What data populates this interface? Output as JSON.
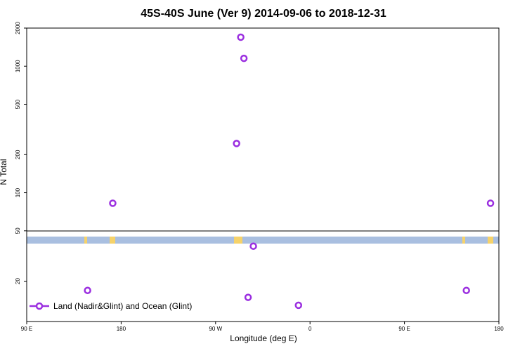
{
  "chart_data": {
    "type": "scatter",
    "title": "45S-40S June (Ver 9)   2014-09-06 to 2018-12-31",
    "xlabel": "Longitude (deg E)",
    "ylabel": "N Total",
    "xlim": [
      90,
      540
    ],
    "ylim": [
      9.6,
      2000
    ],
    "ylog": true,
    "xticks": [
      {
        "value": 90,
        "label": "90 E"
      },
      {
        "value": 180,
        "label": "180"
      },
      {
        "value": 270,
        "label": "90 W"
      },
      {
        "value": 360,
        "label": "0"
      },
      {
        "value": 450,
        "label": "90 E"
      },
      {
        "value": 540,
        "label": "180"
      }
    ],
    "yticks": [
      20,
      50,
      100,
      200,
      500,
      1000,
      2000
    ],
    "legend": "lower left",
    "series": [
      {
        "name": "Land (Nadir&Glint) and Ocean (Glint)",
        "color": "#9b2fe0",
        "x": [
          148,
          172,
          290,
          294,
          297,
          306,
          301,
          349,
          509,
          532
        ],
        "values": [
          16.9,
          82.6,
          245,
          1694,
          1153,
          37.8,
          14.9,
          12.9,
          16.9,
          82.6
        ]
      }
    ]
  }
}
